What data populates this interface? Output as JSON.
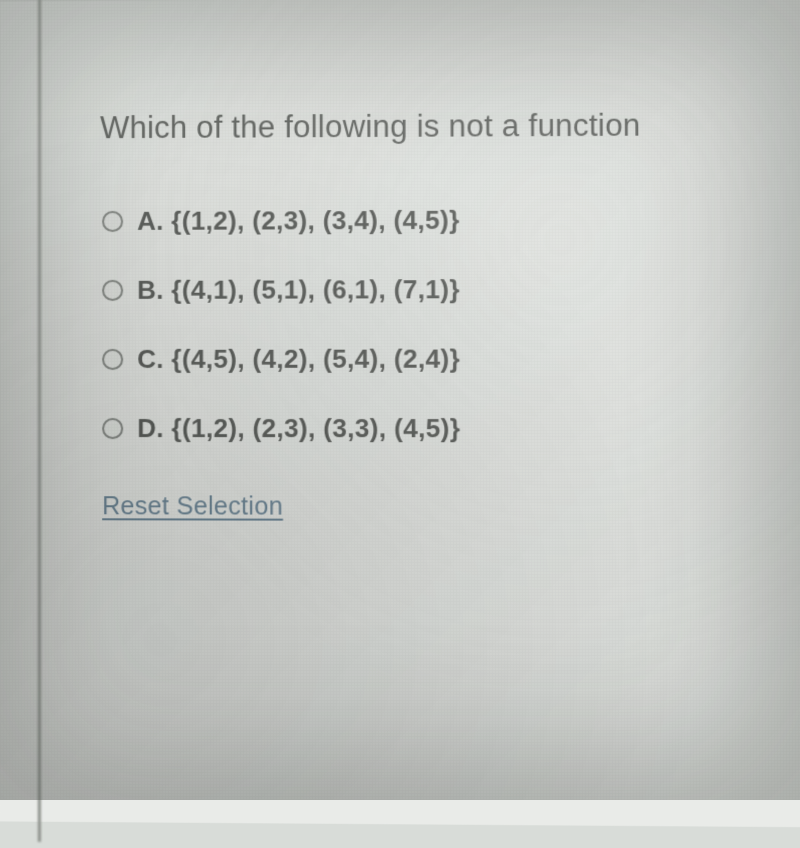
{
  "question": {
    "text": "Which of the following is not a function"
  },
  "options": [
    {
      "label": "A. {(1,2), (2,3), (3,4), (4,5)}"
    },
    {
      "label": "B. {(4,1), (5,1), (6,1), (7,1)}"
    },
    {
      "label": "C. {(4,5), (4,2), (5,4), (2,4)}"
    },
    {
      "label": "D. {(1,2), (2,3), (3,3), (4,5)}"
    }
  ],
  "reset": {
    "label": "Reset Selection"
  },
  "colors": {
    "background": "#eaece9",
    "text": "#3a3c3a",
    "option_text": "#2f312e",
    "radio_border": "#6b6e6a",
    "link": "#4a6a82",
    "left_border": "#8a8e88"
  }
}
